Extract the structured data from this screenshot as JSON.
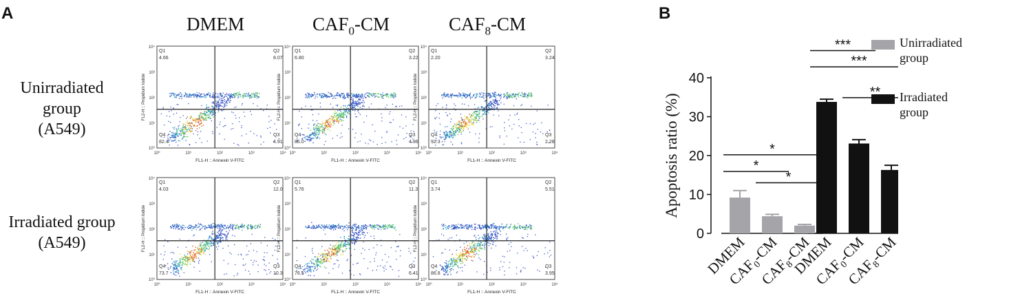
{
  "panel_a": {
    "letter": "A",
    "columns": [
      {
        "title": "DMEM",
        "title_sub": ""
      },
      {
        "title": "CAF",
        "title_sub": "0",
        "title_suffix": "-CM"
      },
      {
        "title": "CAF",
        "title_sub": "8",
        "title_suffix": "-CM"
      }
    ],
    "rows": [
      {
        "label_line1": "Unirradiated group",
        "label_line2": "(A549)"
      },
      {
        "label_line1": "Irradiated group",
        "label_line2": "(A549)"
      }
    ],
    "x_axis_label": "FL1-H :: Annexin V-FITC",
    "y_axis_label": "FL2-H :: Propidium Iodide",
    "tick_labels": [
      "10⁰",
      "10¹",
      "10²",
      "10³",
      "10⁴"
    ],
    "quadrant_names": [
      "Q1",
      "Q2",
      "Q3",
      "Q4"
    ],
    "plots": [
      {
        "row": 0,
        "col": 0,
        "q1": "4.66",
        "q2": "8.07",
        "q3": "4.91",
        "q4": "82.4"
      },
      {
        "row": 0,
        "col": 1,
        "q1": "6.80",
        "q2": "3.22",
        "q3": "4.96",
        "q4": "85.0"
      },
      {
        "row": 0,
        "col": 2,
        "q1": "2.20",
        "q2": "3.24",
        "q3": "2.28",
        "q4": "92.3"
      },
      {
        "row": 1,
        "col": 0,
        "q1": "4.03",
        "q2": "12.0",
        "q3": "10.3",
        "q4": "73.7"
      },
      {
        "row": 1,
        "col": 1,
        "q1": "5.76",
        "q2": "11.3",
        "q3": "6.41",
        "q4": "76.5"
      },
      {
        "row": 1,
        "col": 2,
        "q1": "3.74",
        "q2": "5.51",
        "q3": "3.95",
        "q4": "86.8"
      }
    ]
  },
  "chart_data": {
    "type": "bar",
    "letter": "B",
    "title": "",
    "ylabel": "Apoptosis ratio (%)",
    "xlabel": "",
    "ylim": [
      0,
      40
    ],
    "yticks": [
      0,
      10,
      20,
      30,
      40
    ],
    "categories": [
      {
        "main": "DMEM",
        "sub": "",
        "suffix": ""
      },
      {
        "main": "CAF",
        "sub": "0",
        "suffix": "-CM"
      },
      {
        "main": "CAF",
        "sub": "8",
        "suffix": "-CM"
      }
    ],
    "series": [
      {
        "name": "Unirradiated group",
        "color": "#a4a4a9",
        "values": [
          9.2,
          4.4,
          2.0
        ],
        "errors": [
          1.8,
          0.5,
          0.3
        ]
      },
      {
        "name": "Irradiated group",
        "color": "#111111",
        "values": [
          33.8,
          23.1,
          16.3
        ],
        "errors": [
          0.7,
          1.0,
          1.2
        ]
      }
    ],
    "significance": [
      {
        "series": 0,
        "from": 0,
        "to": 2,
        "label": "*",
        "y": 20.2
      },
      {
        "series": 0,
        "from": 0,
        "to": 1,
        "label": "*",
        "y": 15.9
      },
      {
        "series": 0,
        "from": 1,
        "to": 2,
        "label": "*",
        "y": 13.0
      },
      {
        "series": 1,
        "from": 0,
        "to": 1,
        "label": "***",
        "y": 47.0
      },
      {
        "series": 1,
        "from": 0,
        "to": 2,
        "label": "***",
        "y": 42.8
      },
      {
        "series": 1,
        "from": 1,
        "to": 2,
        "label": "**",
        "y": 34.9
      }
    ],
    "legend": {
      "position": "right",
      "entries": [
        {
          "line1": "Unirradiated",
          "line2": "group",
          "color": "#a4a4a9"
        },
        {
          "line1": "Irradiated",
          "line2": "group",
          "color": "#111111"
        }
      ]
    }
  }
}
